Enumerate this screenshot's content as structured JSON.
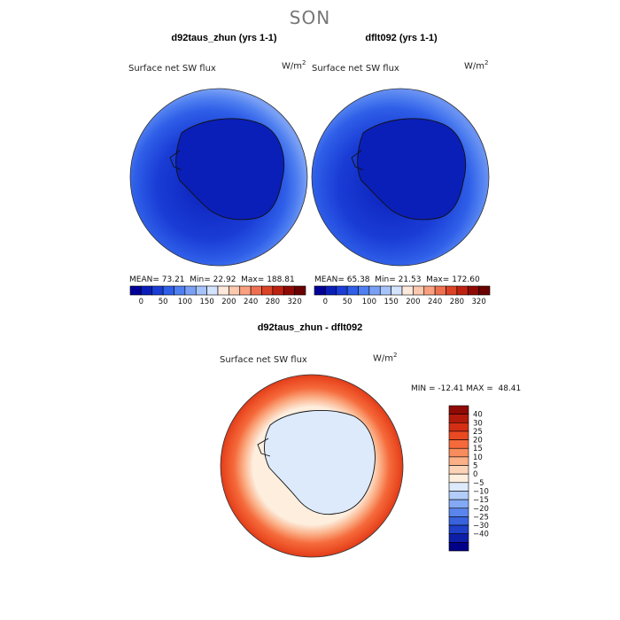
{
  "title": "SON",
  "chart_data": [
    {
      "type": "heatmap",
      "projection": "south-polar-stereographic",
      "title": "d92taus_zhun (yrs 1-1)",
      "variable": "Surface net SW flux",
      "units": "W/m",
      "units_sup": "2",
      "stats": {
        "mean": "73.21",
        "min": "22.92",
        "max": "188.81"
      },
      "mean_label": "MEAN=",
      "min_label": "Min=",
      "max_label": "Max=",
      "contour_levels": [
        0,
        25,
        50,
        75,
        100,
        125,
        150,
        175,
        200,
        220,
        240,
        260,
        280,
        300,
        320
      ],
      "colorbar_ticks": [
        "0",
        "50",
        "100",
        "150",
        "200",
        "240",
        "280",
        "320"
      ],
      "colors": [
        "#000099",
        "#0a1fb8",
        "#1a3dd6",
        "#2f5fe8",
        "#4f7ff0",
        "#7aa0f5",
        "#a6c3fa",
        "#d3e2fd",
        "#fde8dc",
        "#fcc8ae",
        "#f8a07f",
        "#ef7050",
        "#dc4326",
        "#bd2210",
        "#8f0a05",
        "#6a0000"
      ]
    },
    {
      "type": "heatmap",
      "projection": "south-polar-stereographic",
      "title": "dflt092 (yrs 1-1)",
      "variable": "Surface net SW flux",
      "units": "W/m",
      "units_sup": "2",
      "stats": {
        "mean": "65.38",
        "min": "21.53",
        "max": "172.60"
      },
      "mean_label": "MEAN=",
      "min_label": "Min=",
      "max_label": "Max=",
      "contour_levels": [
        0,
        25,
        50,
        75,
        100,
        125,
        150,
        175,
        200,
        220,
        240,
        260,
        280,
        300,
        320
      ],
      "colorbar_ticks": [
        "0",
        "50",
        "100",
        "150",
        "200",
        "240",
        "280",
        "320"
      ],
      "colors": [
        "#000099",
        "#0a1fb8",
        "#1a3dd6",
        "#2f5fe8",
        "#4f7ff0",
        "#7aa0f5",
        "#a6c3fa",
        "#d3e2fd",
        "#fde8dc",
        "#fcc8ae",
        "#f8a07f",
        "#ef7050",
        "#dc4326",
        "#bd2210",
        "#8f0a05",
        "#6a0000"
      ]
    },
    {
      "type": "heatmap",
      "projection": "south-polar-stereographic",
      "title": "d92taus_zhun - dflt092",
      "variable": "Surface net SW flux",
      "units": "W/m",
      "units_sup": "2",
      "stats_text": "MIN = -12.41 MAX =  48.41",
      "colorbar_levels": [
        "40",
        "30",
        "25",
        "20",
        "15",
        "10",
        "5",
        "0",
        "−5",
        "−10",
        "−15",
        "−20",
        "−25",
        "−30",
        "−40"
      ],
      "colors": [
        "#8f0a05",
        "#b31a0c",
        "#d42f14",
        "#ea4a22",
        "#f56a3b",
        "#f88c5c",
        "#fbb088",
        "#fdd3b8",
        "#fdeede",
        "#ddeafc",
        "#b2cdfa",
        "#83a8f4",
        "#5a85ec",
        "#3963dd",
        "#1f40c8",
        "#0d1fa8",
        "#000088"
      ]
    }
  ]
}
